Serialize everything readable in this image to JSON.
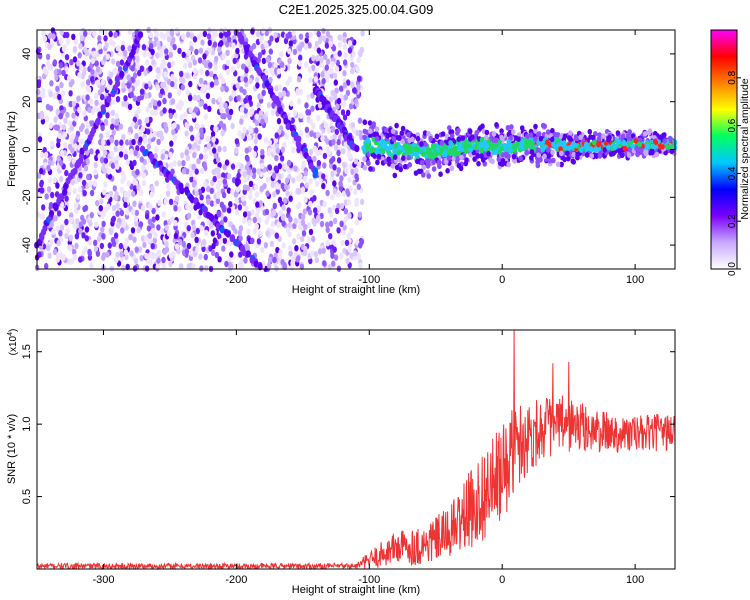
{
  "figure": {
    "title": "C2E1.2025.325.00.04.G09"
  },
  "chart_data": [
    {
      "type": "heatmap",
      "name": "spectrogram",
      "xlabel": "Height of straight line (km)",
      "ylabel": "Frequency (Hz)",
      "xlim": [
        -350,
        130
      ],
      "ylim": [
        -50,
        50
      ],
      "xticks": [
        -300,
        -200,
        -100,
        0,
        100
      ],
      "xtick_labels": [
        "-300",
        "-200",
        "-100",
        "0",
        "100"
      ],
      "yticks": [
        -40,
        -20,
        0,
        20,
        40
      ],
      "ytick_labels": [
        "-40",
        "-20",
        "0",
        "20",
        "40"
      ],
      "noise_region_x": [
        -350,
        -105
      ],
      "signal_track": [
        {
          "x": -105,
          "f": 2
        },
        {
          "x": -80,
          "f": 0
        },
        {
          "x": -60,
          "f": -1
        },
        {
          "x": -40,
          "f": 0
        },
        {
          "x": -20,
          "f": 2
        },
        {
          "x": 0,
          "f": 1
        },
        {
          "x": 20,
          "f": 2
        },
        {
          "x": 40,
          "f": 2
        },
        {
          "x": 60,
          "f": 1
        },
        {
          "x": 80,
          "f": 2
        },
        {
          "x": 100,
          "f": 2
        },
        {
          "x": 130,
          "f": 2
        }
      ],
      "streaks": [
        {
          "x0": -350,
          "f0": -40,
          "x1": -270,
          "f1": 50
        },
        {
          "x0": -270,
          "f0": 0,
          "x1": -180,
          "f1": -50
        },
        {
          "x0": -200,
          "f0": 50,
          "x1": -140,
          "f1": -10
        },
        {
          "x0": -140,
          "f0": 25,
          "x1": -110,
          "f1": 0
        }
      ],
      "colorbar": {
        "label": "Normalized spectral amplitude",
        "range": [
          0,
          1
        ],
        "ticks": [
          0.0,
          0.2,
          0.4,
          0.6,
          0.8
        ],
        "tick_labels": [
          "0.0",
          "0.2",
          "0.4",
          "0.6",
          "0.8"
        ],
        "colors": [
          "#ffffff",
          "#c8a8ff",
          "#7a00ff",
          "#0000ff",
          "#00c8ff",
          "#00ff60",
          "#ffff00",
          "#ff8000",
          "#ff0000",
          "#ff00ff"
        ]
      }
    },
    {
      "type": "line",
      "name": "snr",
      "xlabel": "Height of straight line (km)",
      "ylabel": "SNR (10 * v/v)",
      "scale_label": "(x10",
      "scale_exponent": "4",
      "scale_close": ")",
      "xlim": [
        -350,
        130
      ],
      "ylim": [
        0,
        1.65
      ],
      "xticks": [
        -300,
        -200,
        -100,
        0,
        100
      ],
      "xtick_labels": [
        "-300",
        "-200",
        "-100",
        "0",
        "100"
      ],
      "yticks": [
        0.5,
        1.0,
        1.5
      ],
      "ytick_labels": [
        "0.5",
        "1.0",
        "1.5"
      ],
      "color": "#ee3333",
      "envelope": [
        {
          "x": -350,
          "mean": 0.02,
          "spread": 0.02
        },
        {
          "x": -110,
          "mean": 0.02,
          "spread": 0.02
        },
        {
          "x": -95,
          "mean": 0.08,
          "spread": 0.08
        },
        {
          "x": -80,
          "mean": 0.15,
          "spread": 0.12
        },
        {
          "x": -60,
          "mean": 0.16,
          "spread": 0.14
        },
        {
          "x": -40,
          "mean": 0.25,
          "spread": 0.18
        },
        {
          "x": -20,
          "mean": 0.45,
          "spread": 0.3
        },
        {
          "x": 0,
          "mean": 0.65,
          "spread": 0.35
        },
        {
          "x": 10,
          "mean": 0.85,
          "spread": 0.3
        },
        {
          "x": 30,
          "mean": 0.98,
          "spread": 0.22
        },
        {
          "x": 50,
          "mean": 1.0,
          "spread": 0.2
        },
        {
          "x": 70,
          "mean": 0.95,
          "spread": 0.15
        },
        {
          "x": 100,
          "mean": 0.93,
          "spread": 0.13
        },
        {
          "x": 130,
          "mean": 0.95,
          "spread": 0.13
        }
      ],
      "peaks": [
        {
          "x": 9,
          "y": 1.65
        },
        {
          "x": 38,
          "y": 1.42
        },
        {
          "x": 50,
          "y": 1.43
        }
      ]
    }
  ]
}
